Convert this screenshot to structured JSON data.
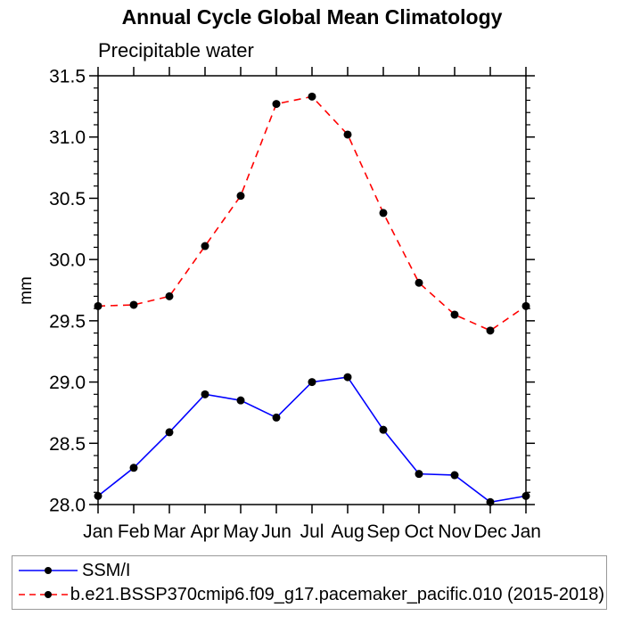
{
  "chart_data": {
    "type": "line",
    "title": "Annual Cycle Global Mean Climatology",
    "subtitle": "Precipitable water",
    "ylabel": "mm",
    "categories": [
      "Jan",
      "Feb",
      "Mar",
      "Apr",
      "May",
      "Jun",
      "Jul",
      "Aug",
      "Sep",
      "Oct",
      "Nov",
      "Dec",
      "Jan"
    ],
    "ytick_labels": [
      "28.0",
      "28.5",
      "29.0",
      "29.5",
      "30.0",
      "30.5",
      "31.0",
      "31.5"
    ],
    "ylim": [
      28.0,
      31.5
    ],
    "ymajor_step": 0.5,
    "yminor_step": 0.1,
    "grid": false,
    "legend_position": "bottom",
    "series": [
      {
        "name": "SSM/I",
        "line_color": "#0000ff",
        "line_style": "solid",
        "marker": "circle",
        "marker_color": "#000000",
        "values": [
          28.07,
          28.3,
          28.59,
          28.9,
          28.85,
          28.71,
          29.0,
          29.04,
          28.61,
          28.25,
          28.24,
          28.02,
          28.07
        ]
      },
      {
        "name": "b.e21.BSSP370cmip6.f09_g17.pacemaker_pacific.010 (2015-2018)",
        "line_color": "#ff0000",
        "line_style": "dashed",
        "marker": "circle",
        "marker_color": "#000000",
        "values": [
          29.62,
          29.63,
          29.7,
          30.11,
          30.52,
          31.27,
          31.33,
          31.02,
          30.38,
          29.81,
          29.55,
          29.42,
          29.62
        ]
      }
    ],
    "colors": {
      "axis": "#000000",
      "text": "#000000",
      "background": "#ffffff",
      "legend_border": "#999999"
    }
  }
}
